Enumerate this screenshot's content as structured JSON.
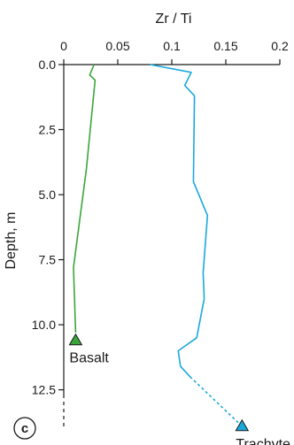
{
  "chart_data": {
    "type": "line",
    "panel_label": "c",
    "xlabel": "Zr / Ti",
    "ylabel": "Depth, m",
    "x_ticks": [
      "0",
      "0.05",
      "0.1",
      "0.15",
      "0.2"
    ],
    "y_ticks": [
      "0.0",
      "2.5",
      "5.0",
      "7.5",
      "10.0",
      "12.5"
    ],
    "x_tick_values": [
      0,
      0.05,
      0.1,
      0.15,
      0.2
    ],
    "y_tick_values": [
      0,
      2.5,
      5,
      7.5,
      10,
      12.5
    ],
    "xlim": [
      0,
      0.2
    ],
    "ylim": [
      0,
      13.5
    ],
    "x_axis_position": "top",
    "y_inverted": true,
    "grid": false,
    "series": [
      {
        "color": "#3aa63a",
        "points": [
          [
            0.028,
            0.0
          ],
          [
            0.024,
            0.4
          ],
          [
            0.029,
            0.6
          ],
          [
            0.021,
            4.0
          ],
          [
            0.009,
            7.8
          ],
          [
            0.011,
            10.3
          ]
        ],
        "end_marker": {
          "x": 0.011,
          "y": 10.6,
          "label": "Basalt",
          "shape": "triangle",
          "color": "#3aa63a"
        }
      },
      {
        "color": "#1aa8dc",
        "points": [
          [
            0.08,
            0.0
          ],
          [
            0.118,
            0.3
          ],
          [
            0.112,
            0.8
          ],
          [
            0.121,
            1.2
          ],
          [
            0.12,
            4.5
          ],
          [
            0.133,
            5.8
          ],
          [
            0.129,
            8.0
          ],
          [
            0.13,
            9.0
          ],
          [
            0.123,
            10.5
          ],
          [
            0.106,
            11.0
          ],
          [
            0.108,
            11.6
          ],
          [
            0.117,
            12.0
          ]
        ],
        "dashed_continuation": [
          [
            0.117,
            12.0
          ],
          [
            0.165,
            13.9
          ]
        ],
        "end_marker": {
          "x": 0.165,
          "y": 13.9,
          "label": "Trachyte",
          "shape": "triangle",
          "color": "#1aa8dc"
        }
      }
    ]
  }
}
